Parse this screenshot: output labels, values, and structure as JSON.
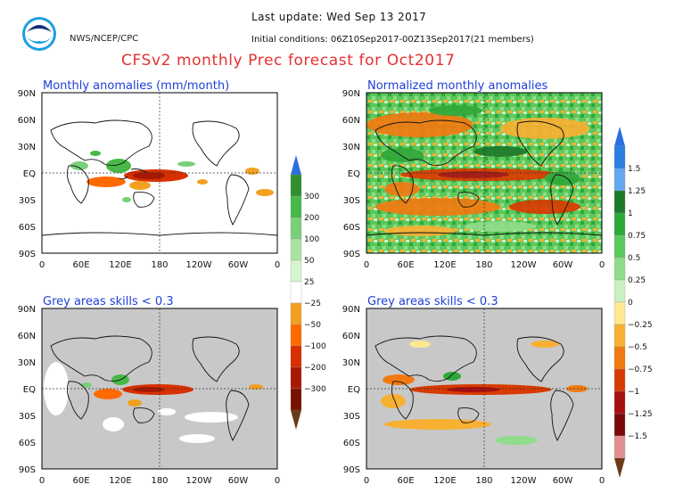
{
  "header": {
    "agency": "NWS/NCEP/CPC",
    "logo_text": "noaa",
    "last_update": "Last update: Wed Sep 13 2017",
    "initial_conditions": "Initial conditions: 06Z10Sep2017-00Z13Sep2017(21 members)",
    "title": "CFSv2 monthly Prec forecast for Oct2017"
  },
  "colors": {
    "title": "#e53030",
    "panel_title": "#1f3fd8",
    "grey_mask": "#c8c8c8"
  },
  "map_axes": {
    "lat_labels": [
      "90N",
      "60N",
      "30N",
      "EQ",
      "30S",
      "60S",
      "90S"
    ],
    "lon_labels": [
      "0",
      "60E",
      "120E",
      "180",
      "120W",
      "60W",
      "0"
    ]
  },
  "panels": [
    {
      "id": "anom",
      "title": "Monthly anomalies (mm/month)"
    },
    {
      "id": "norm",
      "title": "Normalized monthly anomalies"
    },
    {
      "id": "anom-skill",
      "title": "Grey areas skills < 0.3"
    },
    {
      "id": "norm-skill",
      "title": "Grey areas skills < 0.3"
    }
  ],
  "legend_anomaly": {
    "labels": [
      "300",
      "200",
      "100",
      "50",
      "25",
      "−25",
      "−50",
      "−100",
      "−200",
      "−300"
    ],
    "colors": [
      "#2f8f2f",
      "#48b848",
      "#78d078",
      "#a8e4a0",
      "#d6f4d0",
      "#ffffff",
      "#f2a020",
      "#ff6a00",
      "#d83000",
      "#a81800",
      "#7a1200"
    ],
    "arrow_top": "#2a6fe0",
    "arrow_bottom": "#6b3a1a"
  },
  "legend_normalized": {
    "labels": [
      "1.5",
      "1.25",
      "1",
      "0.75",
      "0.5",
      "0.25",
      "0",
      "−0.25",
      "−0.5",
      "−0.75",
      "−1",
      "−1.25",
      "−1.5"
    ],
    "colors": [
      "#2a7fe0",
      "#63a8f0",
      "#1b7a2a",
      "#2fa83a",
      "#5cc85c",
      "#8fdc8a",
      "#c8f0c0",
      "#ffe890",
      "#f7b032",
      "#f07a10",
      "#d83a00",
      "#a81010",
      "#7a0a0a",
      "#e09090"
    ],
    "arrow_top": "#2a6fe0",
    "arrow_bottom": "#6b3a1a"
  }
}
